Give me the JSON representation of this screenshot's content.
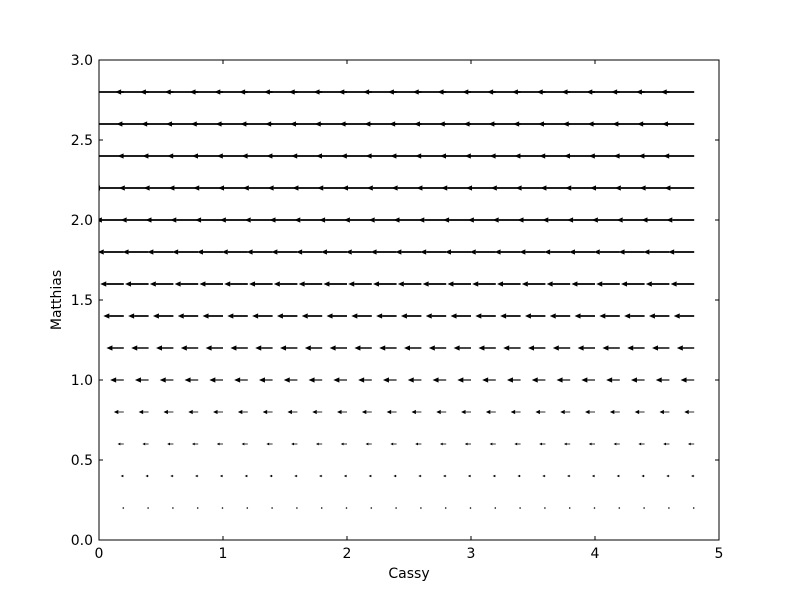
{
  "chart_data": {
    "type": "quiver",
    "title": "",
    "xlabel": "Cassy",
    "ylabel": "Matthias",
    "xlim": [
      0,
      5
    ],
    "ylim": [
      0,
      3
    ],
    "xticks": [
      "0",
      "1",
      "2",
      "3",
      "4",
      "5"
    ],
    "yticks": [
      "0.0",
      "0.5",
      "1.0",
      "1.5",
      "2.0",
      "2.5",
      "3.0"
    ],
    "grid": false,
    "legend": "none",
    "arrow_color": "#000000",
    "vector_field": {
      "x_start": 0,
      "x_step": 0.2,
      "x_count": 25,
      "y_levels": [
        0.2,
        0.4,
        0.6,
        0.8,
        1.0,
        1.2,
        1.4,
        1.6,
        1.8,
        2.0,
        2.2,
        2.4,
        2.6,
        2.8
      ],
      "u_per_y": [
        -0.006,
        -0.025,
        -0.05,
        -0.08,
        -0.11,
        -0.14,
        -0.165,
        -0.19,
        -0.21,
        -0.225,
        -0.24,
        -0.25,
        -0.26,
        -0.27
      ],
      "v": 0
    }
  }
}
